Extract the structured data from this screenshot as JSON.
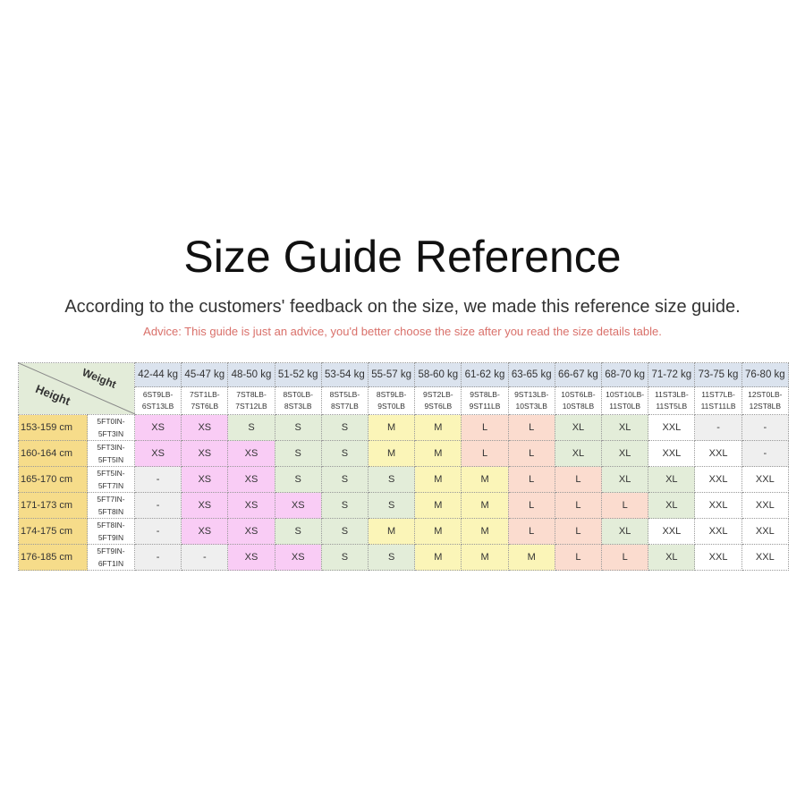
{
  "title": "Size Guide Reference",
  "subtitle": "According to the customers' feedback on the size, we made this reference size guide.",
  "advice": "Advice: This guide is just an advice, you'd better choose the size after you read the size details table.",
  "corner": {
    "weight": "Weight",
    "height": "Height"
  },
  "colors": {
    "XS": "#f9ccf5",
    "S": "#e3edd9",
    "M": "#fbf5b8",
    "L": "#fbdccf",
    "XL": "#e3edd9",
    "XXL": "#ffffff",
    "-": "#efefef"
  },
  "weights_kg": [
    "42-44 kg",
    "45-47 kg",
    "48-50 kg",
    "51-52 kg",
    "53-54 kg",
    "55-57 kg",
    "58-60 kg",
    "61-62 kg",
    "63-65 kg",
    "66-67 kg",
    "68-70 kg",
    "71-72 kg",
    "73-75 kg",
    "76-80 kg"
  ],
  "weights_st": [
    [
      "6ST9LB-",
      "6ST13LB"
    ],
    [
      "7ST1LB-",
      "7ST6LB"
    ],
    [
      "7ST8LB-",
      "7ST12LB"
    ],
    [
      "8ST0LB-",
      "8ST3LB"
    ],
    [
      "8ST5LB-",
      "8ST7LB"
    ],
    [
      "8ST9LB-",
      "9ST0LB"
    ],
    [
      "9ST2LB-",
      "9ST6LB"
    ],
    [
      "9ST8LB-",
      "9ST11LB"
    ],
    [
      "9ST13LB-",
      "10ST3LB"
    ],
    [
      "10ST6LB-",
      "10ST8LB"
    ],
    [
      "10ST10LB-",
      "11ST0LB"
    ],
    [
      "11ST3LB-",
      "11ST5LB"
    ],
    [
      "11ST7LB-",
      "11ST11LB"
    ],
    [
      "12ST0LB-",
      "12ST8LB"
    ]
  ],
  "rows": [
    {
      "cm": "153-159 cm",
      "ft": [
        "5FT0IN-",
        "5FT3IN"
      ],
      "sizes": [
        "XS",
        "XS",
        "S",
        "S",
        "S",
        "M",
        "M",
        "L",
        "L",
        "XL",
        "XL",
        "XXL",
        "-",
        "-"
      ]
    },
    {
      "cm": "160-164 cm",
      "ft": [
        "5FT3IN-",
        "5FT5IN"
      ],
      "sizes": [
        "XS",
        "XS",
        "XS",
        "S",
        "S",
        "M",
        "M",
        "L",
        "L",
        "XL",
        "XL",
        "XXL",
        "XXL",
        "-"
      ]
    },
    {
      "cm": "165-170 cm",
      "ft": [
        "5FT5IN-",
        "5FT7IN"
      ],
      "sizes": [
        "-",
        "XS",
        "XS",
        "S",
        "S",
        "S",
        "M",
        "M",
        "L",
        "L",
        "XL",
        "XL",
        "XXL",
        "XXL"
      ]
    },
    {
      "cm": "171-173 cm",
      "ft": [
        "5FT7IN-",
        "5FT8IN"
      ],
      "sizes": [
        "-",
        "XS",
        "XS",
        "XS",
        "S",
        "S",
        "M",
        "M",
        "L",
        "L",
        "L",
        "XL",
        "XXL",
        "XXL"
      ]
    },
    {
      "cm": "174-175 cm",
      "ft": [
        "5FT8IN-",
        "5FT9IN"
      ],
      "sizes": [
        "-",
        "XS",
        "XS",
        "S",
        "S",
        "M",
        "M",
        "M",
        "L",
        "L",
        "XL",
        "XXL",
        "XXL",
        "XXL"
      ]
    },
    {
      "cm": "176-185 cm",
      "ft": [
        "5FT9IN-",
        "6FT1IN"
      ],
      "sizes": [
        "-",
        "-",
        "XS",
        "XS",
        "S",
        "S",
        "M",
        "M",
        "M",
        "L",
        "L",
        "XL",
        "XXL",
        "XXL"
      ]
    }
  ]
}
